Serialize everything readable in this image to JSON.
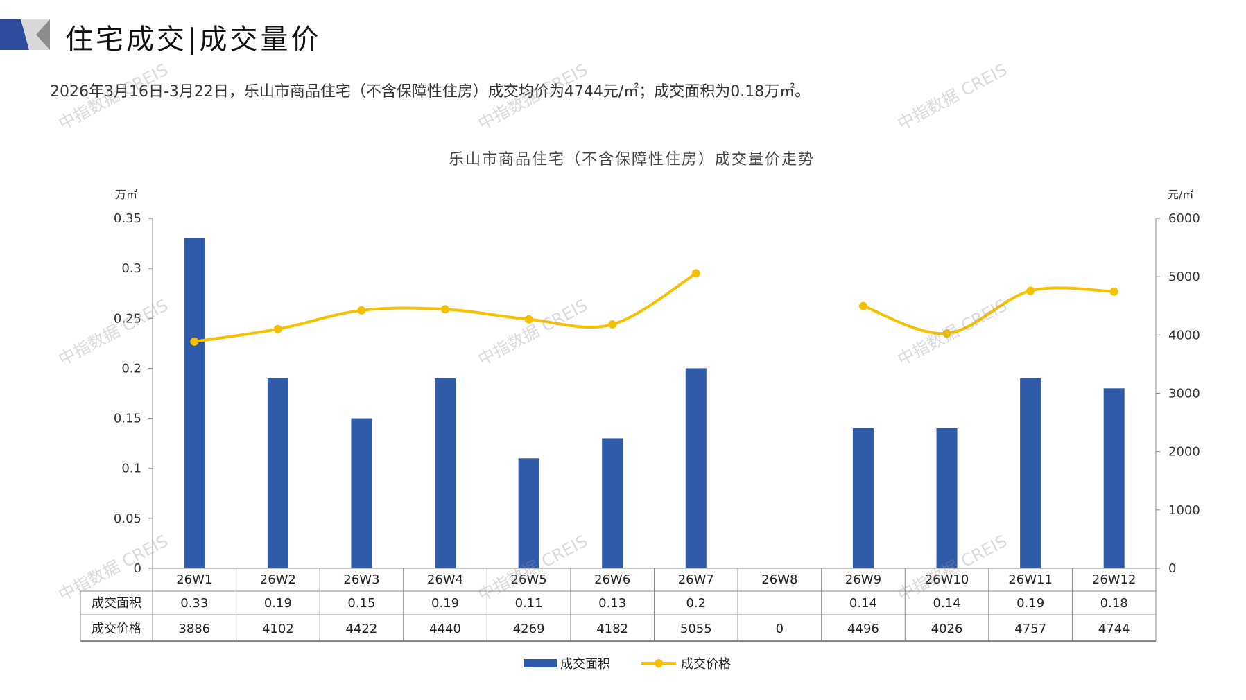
{
  "header": {
    "title": "住宅成交|成交量价"
  },
  "subtitle": "2026年3月16日-3月22日，乐山市商品住宅（不含保障性住房）成交均价为4744元/㎡；成交面积为0.18万㎡。",
  "watermark": "中指数据 CREIS",
  "colors": {
    "bar": "#2f5ba8",
    "line": "#f5c000",
    "brand_blue": "#2e4b9b"
  },
  "chart_data": {
    "type": "bar+line",
    "title": "乐山市商品住宅（不含保障性住房）成交量价走势",
    "categories": [
      "26W1",
      "26W2",
      "26W3",
      "26W4",
      "26W5",
      "26W6",
      "26W7",
      "26W8",
      "26W9",
      "26W10",
      "26W11",
      "26W12"
    ],
    "left_unit": "万㎡",
    "right_unit": "元/㎡",
    "left_ylim": [
      0,
      0.35
    ],
    "left_ticks": [
      "0",
      "0.05",
      "0.1",
      "0.15",
      "0.2",
      "0.25",
      "0.3",
      "0.35"
    ],
    "right_ylim": [
      0,
      6000
    ],
    "right_ticks": [
      "0",
      "1000",
      "2000",
      "3000",
      "4000",
      "5000",
      "6000"
    ],
    "series": [
      {
        "name": "成交面积",
        "type": "bar",
        "values": [
          0.33,
          0.19,
          0.15,
          0.19,
          0.11,
          0.13,
          0.2,
          null,
          0.14,
          0.14,
          0.19,
          0.18
        ],
        "labels": [
          "0.33",
          "0.19",
          "0.15",
          "0.19",
          "0.11",
          "0.13",
          "0.2",
          "",
          "0.14",
          "0.14",
          "0.19",
          "0.18"
        ]
      },
      {
        "name": "成交价格",
        "type": "line",
        "values": [
          3886,
          4102,
          4422,
          4440,
          4269,
          4182,
          5055,
          0,
          4496,
          4026,
          4757,
          4744
        ],
        "labels": [
          "3886",
          "4102",
          "4422",
          "4440",
          "4269",
          "4182",
          "5055",
          "0",
          "4496",
          "4026",
          "4757",
          "4744"
        ],
        "gap_index": 7
      }
    ],
    "legend": "bottom"
  }
}
